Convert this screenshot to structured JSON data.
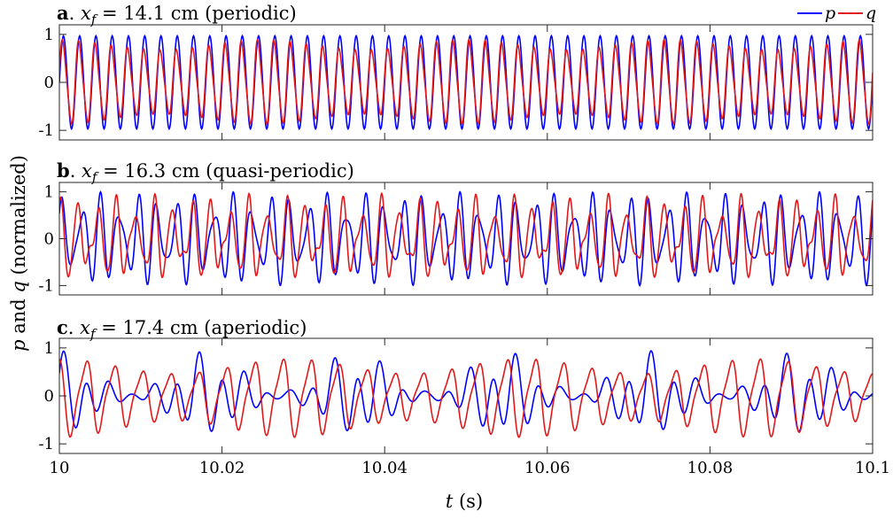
{
  "chart_data": [
    {
      "type": "line",
      "panel_letter": "a",
      "x_symbol": "x",
      "x_subscript": "f",
      "eq_rest": " = 14.1 cm (periodic)",
      "xlim": [
        10,
        10.1
      ],
      "ylim": [
        -1.2,
        1.2
      ],
      "yticks": [
        -1,
        0,
        1
      ],
      "ytick_labels": [
        "-1",
        "0",
        "1"
      ],
      "grid": false,
      "series": [
        {
          "name": "p",
          "color": "#0000ff",
          "freq_hz": 500,
          "amplitude": 0.97,
          "phase": 0.0,
          "mod_hz": 0,
          "mod_depth": 0,
          "harmonics": []
        },
        {
          "name": "q",
          "color": "#e0191a",
          "freq_hz": 500,
          "amplitude": 0.85,
          "phase": 0.2,
          "mod_hz": 40,
          "mod_depth": 0.12,
          "harmonics": [
            [
              2,
              0.12,
              0.3
            ]
          ]
        }
      ]
    },
    {
      "type": "line",
      "panel_letter": "b",
      "x_symbol": "x",
      "x_subscript": "f",
      "eq_rest": " = 16.3 cm (quasi-periodic)",
      "xlim": [
        10,
        10.1
      ],
      "ylim": [
        -1.2,
        1.2
      ],
      "yticks": [
        -1,
        0,
        1
      ],
      "ytick_labels": [
        "-1",
        "0",
        "1"
      ],
      "grid": false,
      "series": [
        {
          "name": "p",
          "color": "#0000ff",
          "freq_hz": 430,
          "amplitude": 0.7,
          "phase": 0.4,
          "mod_hz": 0,
          "mod_depth": 0,
          "harmonics": [
            [
              1.42,
              0.3,
              1.1
            ]
          ]
        },
        {
          "name": "q",
          "color": "#e0191a",
          "freq_hz": 430,
          "amplitude": 0.62,
          "phase": 1.5,
          "mod_hz": 0,
          "mod_depth": 0,
          "harmonics": [
            [
              1.42,
              0.25,
              0.2
            ],
            [
              2,
              0.12,
              0.6
            ]
          ]
        }
      ]
    },
    {
      "type": "line",
      "panel_letter": "c",
      "x_symbol": "x",
      "x_subscript": "f",
      "eq_rest": " = 17.4 cm (aperiodic)",
      "xlim": [
        10,
        10.1
      ],
      "ylim": [
        -1.2,
        1.2
      ],
      "yticks": [
        -1,
        0,
        1
      ],
      "ytick_labels": [
        "-1",
        "0",
        "1"
      ],
      "xticks": [
        10,
        10.02,
        10.04,
        10.06,
        10.08,
        10.1
      ],
      "xtick_labels": [
        "10",
        "10.02",
        "10.04",
        "10.06",
        "10.08",
        "10.1"
      ],
      "grid": false,
      "series": [
        {
          "name": "p",
          "color": "#0000ff",
          "freq_hz": 360,
          "amplitude": 0.65,
          "phase": 0.3,
          "mod_hz": 55,
          "mod_depth": 0.45,
          "harmonics": [
            [
              0.5,
              0.3,
              1.2
            ]
          ]
        },
        {
          "name": "q",
          "color": "#e0191a",
          "freq_hz": 290,
          "amplitude": 0.75,
          "phase": 2.0,
          "mod_hz": 35,
          "mod_depth": 0.2,
          "harmonics": [
            [
              2,
              0.18,
              0.5
            ]
          ]
        }
      ]
    }
  ],
  "shared": {
    "ylabel_p": "p",
    "ylabel_and": " and ",
    "ylabel_q": "q",
    "ylabel_rest": " (normalized)",
    "xlabel_t": "t",
    "xlabel_rest": " (s)",
    "legend": [
      {
        "label": "p",
        "color": "#0000ff"
      },
      {
        "label": "q",
        "color": "#e0191a"
      }
    ]
  }
}
